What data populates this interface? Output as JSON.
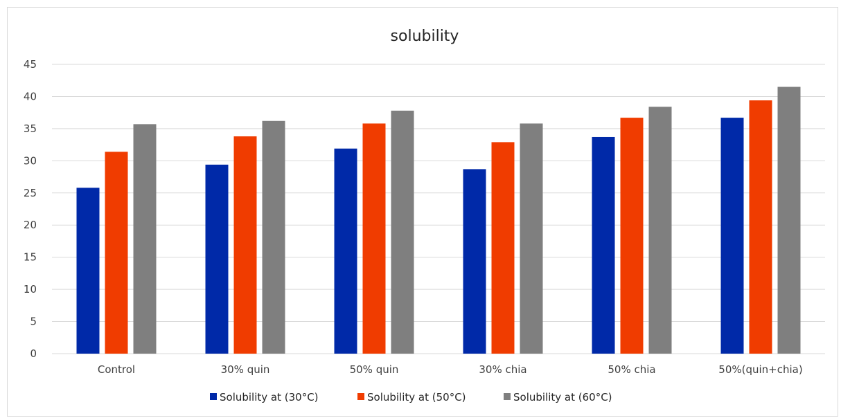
{
  "chart_data": {
    "type": "bar",
    "title": "solubility",
    "xlabel": "",
    "ylabel": "",
    "categories": [
      "Control",
      "30% quin",
      "50% quin",
      "30% chia",
      "50% chia",
      "50%(quin+chia)"
    ],
    "series": [
      {
        "name": "Solubility at (30°C)",
        "color": "#0029a8",
        "values": [
          25.8,
          29.4,
          31.9,
          28.7,
          33.7,
          36.7
        ]
      },
      {
        "name": "Solubility at (50°C)",
        "color": "#f03c00",
        "values": [
          31.4,
          33.8,
          35.8,
          32.9,
          36.7,
          39.4
        ]
      },
      {
        "name": "Solubility at (60°C)",
        "color": "#7f7f7f",
        "values": [
          35.7,
          36.2,
          37.8,
          35.8,
          38.4,
          41.5
        ]
      }
    ],
    "ylim": [
      0,
      45
    ],
    "yticks": [
      0,
      5,
      10,
      15,
      20,
      25,
      30,
      35,
      40,
      45
    ],
    "grid": true,
    "legend_position": "bottom",
    "colors": {
      "gridline": "#d9d9d9",
      "axis_text": "#404040",
      "title": "#262626"
    }
  }
}
